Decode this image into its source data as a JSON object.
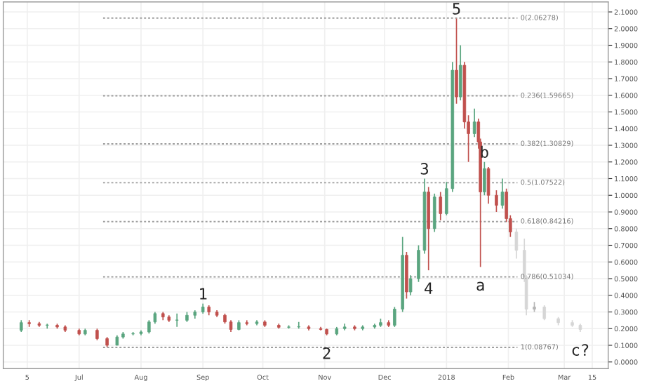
{
  "chart_data": {
    "type": "candlestick",
    "series": [
      {
        "colors": [
          "#5aa57f",
          "#c0504d",
          "#c0504d",
          "#5aa57f",
          "#c0504d",
          "#c0504d",
          "#c0504d",
          "#5aa57f",
          "#c0504d",
          "#c0504d",
          "#5aa57f",
          "#5aa57f",
          "#5aa57f",
          "#5aa57f",
          "#5aa57f",
          "#5aa57f",
          "#c0504d",
          "#c0504d",
          "#5aa57f",
          "#5aa57f",
          "#5aa57f",
          "#5aa57f",
          "#c0504d",
          "#c0504d",
          "#c0504d",
          "#c0504d",
          "#5aa57f",
          "#c0504d",
          "#5aa57f",
          "#c0504d",
          "#c0504d",
          "#5aa57f",
          "#5aa57f",
          "#c0504d",
          "#c0504d",
          "#c0504d",
          "#5aa57f",
          "#5aa57f",
          "#c0504d",
          "#5aa57f",
          "#5aa57f",
          "#5aa57f",
          "#c0504d",
          "#5aa57f",
          "#5aa57f",
          "#c0504d",
          "#5aa57f",
          "#5aa57f",
          "#5aa57f",
          "#c0504d",
          "#5aa57f",
          "#c0504d",
          "#5aa57f",
          "#5aa57f",
          "#c0504d",
          "#5aa57f",
          "#c0504d",
          "#c0504d",
          "#5aa57f",
          "#c0504d",
          "#c0504d",
          "#5aa57f",
          "#c0504d",
          "#c0504d",
          "#5aa57f",
          "#c0504d",
          "#c0504d"
        ],
        "x": [
          "2017-06-02",
          "2017-06-06",
          "2017-06-11",
          "2017-06-15",
          "2017-06-20",
          "2017-06-24",
          "2017-07-01",
          "2017-07-04",
          "2017-07-10",
          "2017-07-15",
          "2017-07-20",
          "2017-07-23",
          "2017-07-28",
          "2017-08-01",
          "2017-08-05",
          "2017-08-08",
          "2017-08-12",
          "2017-08-15",
          "2017-08-19",
          "2017-08-24",
          "2017-08-28",
          "2017-09-01",
          "2017-09-04",
          "2017-09-08",
          "2017-09-12",
          "2017-09-15",
          "2017-09-19",
          "2017-09-23",
          "2017-09-28",
          "2017-10-02",
          "2017-10-09",
          "2017-10-14",
          "2017-10-19",
          "2017-10-24",
          "2017-10-30",
          "2017-11-02",
          "2017-11-07",
          "2017-11-11",
          "2017-11-16",
          "2017-11-20",
          "2017-11-26",
          "2017-11-29",
          "2017-12-03",
          "2017-12-06",
          "2017-12-10",
          "2017-12-12",
          "2017-12-14",
          "2017-12-18",
          "2017-12-21",
          "2017-12-23",
          "2017-12-26",
          "2017-12-29",
          "2018-01-01",
          "2018-01-04",
          "2018-01-06",
          "2018-01-08",
          "2018-01-10",
          "2018-01-12",
          "2018-01-15",
          "2018-01-17",
          "2018-01-18",
          "2018-01-20",
          "2018-01-22",
          "2018-01-26",
          "2018-01-29",
          "2018-01-31",
          "2018-02-02"
        ],
        "ohlc": [
          [
            0.19,
            0.25,
            0.18,
            0.236
          ],
          [
            0.236,
            0.25,
            0.21,
            0.23
          ],
          [
            0.23,
            0.24,
            0.21,
            0.22
          ],
          [
            0.22,
            0.23,
            0.2,
            0.22
          ],
          [
            0.22,
            0.23,
            0.2,
            0.21
          ],
          [
            0.21,
            0.22,
            0.18,
            0.19
          ],
          [
            0.19,
            0.2,
            0.16,
            0.168
          ],
          [
            0.168,
            0.2,
            0.16,
            0.19
          ],
          [
            0.19,
            0.2,
            0.13,
            0.14
          ],
          [
            0.14,
            0.15,
            0.09,
            0.1
          ],
          [
            0.1,
            0.16,
            0.1,
            0.15
          ],
          [
            0.15,
            0.18,
            0.14,
            0.168
          ],
          [
            0.168,
            0.18,
            0.16,
            0.17
          ],
          [
            0.17,
            0.19,
            0.16,
            0.18
          ],
          [
            0.18,
            0.25,
            0.17,
            0.24
          ],
          [
            0.24,
            0.3,
            0.23,
            0.29
          ],
          [
            0.29,
            0.3,
            0.25,
            0.27
          ],
          [
            0.27,
            0.28,
            0.24,
            0.25
          ],
          [
            0.25,
            0.29,
            0.21,
            0.25
          ],
          [
            0.25,
            0.3,
            0.24,
            0.28
          ],
          [
            0.28,
            0.31,
            0.26,
            0.3
          ],
          [
            0.3,
            0.35,
            0.29,
            0.33
          ],
          [
            0.33,
            0.34,
            0.28,
            0.3
          ],
          [
            0.3,
            0.31,
            0.27,
            0.28
          ],
          [
            0.28,
            0.29,
            0.23,
            0.24
          ],
          [
            0.24,
            0.25,
            0.18,
            0.195
          ],
          [
            0.195,
            0.25,
            0.19,
            0.236
          ],
          [
            0.236,
            0.25,
            0.22,
            0.23
          ],
          [
            0.23,
            0.25,
            0.22,
            0.24
          ],
          [
            0.24,
            0.25,
            0.21,
            0.22
          ],
          [
            0.22,
            0.23,
            0.2,
            0.208
          ],
          [
            0.208,
            0.22,
            0.2,
            0.21
          ],
          [
            0.21,
            0.24,
            0.2,
            0.21
          ],
          [
            0.21,
            0.22,
            0.19,
            0.2
          ],
          [
            0.2,
            0.21,
            0.19,
            0.195
          ],
          [
            0.195,
            0.2,
            0.16,
            0.168
          ],
          [
            0.168,
            0.21,
            0.16,
            0.2
          ],
          [
            0.2,
            0.23,
            0.19,
            0.21
          ],
          [
            0.21,
            0.22,
            0.19,
            0.2
          ],
          [
            0.2,
            0.22,
            0.19,
            0.21
          ],
          [
            0.21,
            0.23,
            0.2,
            0.22
          ],
          [
            0.22,
            0.26,
            0.21,
            0.236
          ],
          [
            0.236,
            0.25,
            0.21,
            0.22
          ],
          [
            0.22,
            0.33,
            0.21,
            0.317
          ],
          [
            0.317,
            0.75,
            0.3,
            0.64
          ],
          [
            0.64,
            0.66,
            0.38,
            0.42
          ],
          [
            0.42,
            0.52,
            0.4,
            0.5
          ],
          [
            0.5,
            0.7,
            0.48,
            0.67
          ],
          [
            0.67,
            1.1,
            0.65,
            1.02
          ],
          [
            1.02,
            1.05,
            0.55,
            0.8
          ],
          [
            0.8,
            1.01,
            0.78,
            0.99
          ],
          [
            0.99,
            1.02,
            0.85,
            0.89
          ],
          [
            0.89,
            1.08,
            0.88,
            1.04
          ],
          [
            1.04,
            1.8,
            1.02,
            1.75
          ],
          [
            1.75,
            2.06,
            1.55,
            1.59
          ],
          [
            1.59,
            1.9,
            1.57,
            1.78
          ],
          [
            1.78,
            1.8,
            1.4,
            1.44
          ],
          [
            1.44,
            1.48,
            1.2,
            1.37
          ],
          [
            1.37,
            1.52,
            1.35,
            1.44
          ],
          [
            1.44,
            1.46,
            1.28,
            1.32
          ],
          [
            1.32,
            1.34,
            0.57,
            1.02
          ],
          [
            1.02,
            1.2,
            1.0,
            1.16
          ],
          [
            1.16,
            1.17,
            0.95,
            1.0
          ],
          [
            1.0,
            1.03,
            0.9,
            0.94
          ],
          [
            0.94,
            1.1,
            0.92,
            1.02
          ],
          [
            1.02,
            1.04,
            0.84,
            0.86
          ],
          [
            0.86,
            0.88,
            0.75,
            0.78
          ]
        ]
      },
      {
        "colors": [
          "#d6d6d6",
          "#d6d6d6",
          "#d6d6d6",
          "#b5b5b5",
          "#d6d6d6",
          "#d6d6d6",
          "#d6d6d6",
          "#d6d6d6"
        ],
        "x": [
          "2018-02-05",
          "2018-02-09",
          "2018-02-10",
          "2018-02-14",
          "2018-02-19",
          "2018-02-26",
          "2018-03-05",
          "2018-03-09"
        ],
        "ohlc": [
          [
            0.78,
            0.8,
            0.62,
            0.67
          ],
          [
            0.67,
            0.74,
            0.48,
            0.51
          ],
          [
            0.51,
            0.52,
            0.28,
            0.317
          ],
          [
            0.317,
            0.36,
            0.3,
            0.33
          ],
          [
            0.33,
            0.34,
            0.25,
            0.26
          ],
          [
            0.26,
            0.27,
            0.22,
            0.236
          ],
          [
            0.236,
            0.25,
            0.21,
            0.22
          ],
          [
            0.22,
            0.23,
            0.18,
            0.195
          ]
        ]
      }
    ],
    "xlim": [
      "2017-05-24",
      "2018-03-23"
    ],
    "xticks": [
      {
        "value": "2017-06-05",
        "label": "5"
      },
      {
        "value": "2017-07-01",
        "label": "Jul"
      },
      {
        "value": "2017-08-01",
        "label": "Aug"
      },
      {
        "value": "2017-09-01",
        "label": "Sep"
      },
      {
        "value": "2017-10-01",
        "label": "Oct"
      },
      {
        "value": "2017-11-01",
        "label": "Nov"
      },
      {
        "value": "2017-12-01",
        "label": "Dec"
      },
      {
        "value": "2018-01-01",
        "label": "2018"
      },
      {
        "value": "2018-02-01",
        "label": "Feb"
      },
      {
        "value": "2018-03-01",
        "label": "Mar"
      },
      {
        "value": "2018-03-15",
        "label": "15"
      }
    ],
    "ylim": [
      -0.04,
      2.16
    ],
    "yticks": [
      {
        "value": 0,
        "label": "0.0000"
      },
      {
        "value": 0.1,
        "label": "0.1000"
      },
      {
        "value": 0.2,
        "label": "0.2000"
      },
      {
        "value": 0.3,
        "label": "0.3000"
      },
      {
        "value": 0.4,
        "label": "0.4000"
      },
      {
        "value": 0.5,
        "label": "0.5000"
      },
      {
        "value": 0.6,
        "label": "0.6000"
      },
      {
        "value": 0.7,
        "label": "0.7000"
      },
      {
        "value": 0.8,
        "label": "0.8000"
      },
      {
        "value": 0.9,
        "label": "0.9000"
      },
      {
        "value": 1.0,
        "label": "1.0000"
      },
      {
        "value": 1.1,
        "label": "1.1000"
      },
      {
        "value": 1.2,
        "label": "1.2000"
      },
      {
        "value": 1.3,
        "label": "1.3000"
      },
      {
        "value": 1.4,
        "label": "1.4000"
      },
      {
        "value": 1.5,
        "label": "1.5000"
      },
      {
        "value": 1.6,
        "label": "1.6000"
      },
      {
        "value": 1.7,
        "label": "1.7000"
      },
      {
        "value": 1.8,
        "label": "1.8000"
      },
      {
        "value": 1.9,
        "label": "1.9000"
      },
      {
        "value": 2.0,
        "label": "2.0000"
      },
      {
        "value": 2.1,
        "label": "2.1000"
      }
    ],
    "grid": true,
    "ref_lines": [
      {
        "axis": "y",
        "value": 2.06278,
        "label": "0(2.06278)",
        "color": "#9e9e9e",
        "line_style": "dotted"
      },
      {
        "axis": "y",
        "value": 1.59665,
        "label": "0.236(1.59665)",
        "color": "#9e9e9e",
        "line_style": "dotted"
      },
      {
        "axis": "y",
        "value": 1.30829,
        "label": "0.382(1.30829)",
        "color": "#9e9e9e",
        "line_style": "dotted"
      },
      {
        "axis": "y",
        "value": 1.07522,
        "label": "0.5(1.07522)",
        "color": "#9e9e9e",
        "line_style": "dotted"
      },
      {
        "axis": "y",
        "value": 0.84216,
        "label": "0.618(0.84216)",
        "color": "#9e9e9e",
        "line_style": "dotted"
      },
      {
        "axis": "y",
        "value": 0.51034,
        "label": "0.786(0.51034)",
        "color": "#9e9e9e",
        "line_style": "dotted"
      },
      {
        "axis": "y",
        "value": 0.08767,
        "label": "1(0.08767)",
        "color": "#9e9e9e",
        "line_style": "dotted"
      }
    ],
    "annotations": [
      {
        "text": "1",
        "x": "2017-09-01",
        "y": 0.35
      },
      {
        "text": "2",
        "x": "2017-11-02",
        "y": 0.16
      },
      {
        "text": "3",
        "x": "2017-12-21",
        "y": 1.1
      },
      {
        "text": "4",
        "x": "2017-12-23",
        "y": 0.55
      },
      {
        "text": "5",
        "x": "2018-01-06",
        "y": 2.06
      },
      {
        "text": "a",
        "x": "2018-01-18",
        "y": 0.57
      },
      {
        "text": "b",
        "x": "2018-01-20",
        "y": 1.2
      },
      {
        "text": "c?",
        "x": "2018-03-09",
        "y": 0.18
      }
    ]
  }
}
